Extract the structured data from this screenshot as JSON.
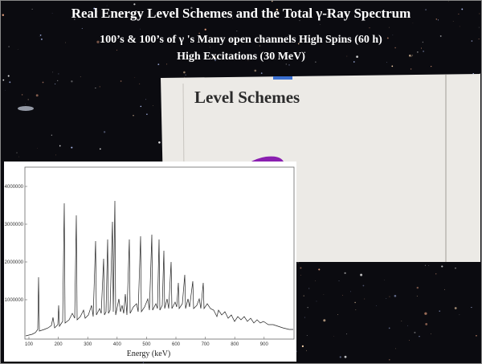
{
  "title": "Real Energy Level Schemes and the Total γ-Ray Spectrum",
  "subtitle": [
    "100’s & 100’s of γ 's Many open channels High Spins (60 h)",
    "High Excitations (30 MeV)"
  ],
  "photo": {
    "heading": "Level Schemes"
  },
  "spectrum": {
    "x_label": "Energy (keV)",
    "x_ticks": [
      "100",
      "200",
      "300",
      "400",
      "500",
      "600",
      "700",
      "800",
      "900"
    ],
    "y_ticks": [
      "4000000",
      "3000000",
      "2000000",
      "1000000"
    ]
  }
}
